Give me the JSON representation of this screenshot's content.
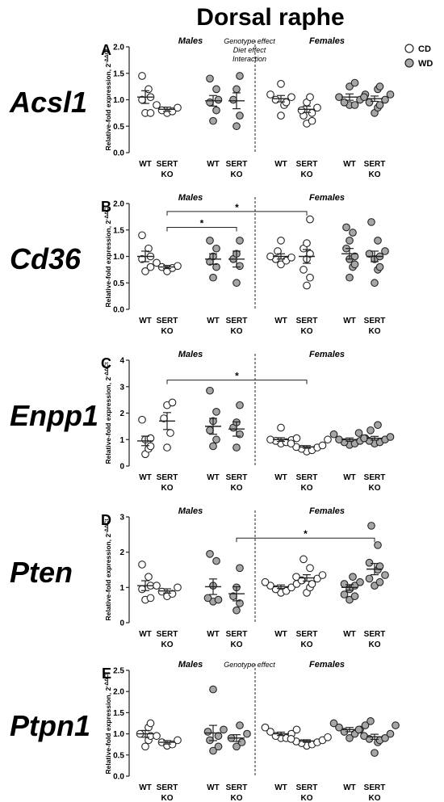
{
  "figure_title": "Dorsal raphe",
  "legend": [
    {
      "label": "CD",
      "fill": "#ffffff"
    },
    {
      "label": "WD",
      "fill": "#a6a6a6"
    }
  ],
  "y_label": "Relative-fold expression, 2",
  "y_label_sup": "-ΔΔCt",
  "category_labels": [
    {
      "line1": "WT",
      "line2": ""
    },
    {
      "line1": "SERT",
      "line2": "KO"
    },
    {
      "line1": "WT",
      "line2": ""
    },
    {
      "line1": "SERT",
      "line2": "KO"
    },
    {
      "line1": "WT",
      "line2": ""
    },
    {
      "line1": "SERT",
      "line2": "KO"
    },
    {
      "line1": "WT",
      "line2": ""
    },
    {
      "line1": "SERT",
      "line2": "KO"
    }
  ],
  "colors": {
    "cd_fill": "#ffffff",
    "wd_fill": "#a6a6a6",
    "stroke": "#222222"
  },
  "chart_data": [
    {
      "type": "scatter",
      "letter": "A",
      "gene": "Acsl1",
      "males_label": "Males",
      "females_label": "Females",
      "notes": [
        "Genotype effect",
        "Diet effect",
        "Interaction"
      ],
      "ylim": [
        0,
        2.0
      ],
      "yticks": [
        "0.0",
        "0.5",
        "1.0",
        "1.5",
        "2.0"
      ],
      "ytick_values": [
        0,
        0.5,
        1.0,
        1.5,
        2.0
      ],
      "groups": [
        {
          "values": [
            1.45,
            1.2,
            1.05,
            1.0,
            0.75,
            0.75
          ],
          "mean": 1.05,
          "sem": 0.12
        },
        {
          "values": [
            0.9,
            0.85,
            0.8,
            0.78,
            0.75
          ],
          "mean": 0.82,
          "sem": 0.04
        },
        {
          "values": [
            1.4,
            1.2,
            1.0,
            0.95,
            0.8,
            0.6
          ],
          "mean": 0.98,
          "sem": 0.1
        },
        {
          "values": [
            1.45,
            1.2,
            1.0,
            0.7,
            0.5
          ],
          "mean": 0.98,
          "sem": 0.15
        },
        {
          "values": [
            1.3,
            1.1,
            1.05,
            1.0,
            0.95,
            0.9,
            0.7
          ],
          "mean": 1.02,
          "sem": 0.06
        },
        {
          "values": [
            1.05,
            0.95,
            0.85,
            0.8,
            0.75,
            0.7,
            0.6,
            0.55
          ],
          "mean": 0.82,
          "sem": 0.06
        },
        {
          "values": [
            1.32,
            1.25,
            1.1,
            1.05,
            1.0,
            0.95,
            0.9,
            0.9
          ],
          "mean": 1.05,
          "sem": 0.06
        },
        {
          "values": [
            1.25,
            1.2,
            1.1,
            1.05,
            1.0,
            0.95,
            0.9,
            0.85,
            0.75
          ],
          "mean": 1.02,
          "sem": 0.05
        }
      ],
      "brackets": []
    },
    {
      "type": "scatter",
      "letter": "B",
      "gene": "Cd36",
      "males_label": "Males",
      "females_label": "Females",
      "notes": [],
      "ylim": [
        0,
        2.0
      ],
      "yticks": [
        "0.0",
        "0.5",
        "1.0",
        "1.5",
        "2.0"
      ],
      "ytick_values": [
        0,
        0.5,
        1.0,
        1.5,
        2.0
      ],
      "groups": [
        {
          "values": [
            1.4,
            1.15,
            1.0,
            0.95,
            0.8,
            0.72
          ],
          "mean": 1.0,
          "sem": 0.1
        },
        {
          "values": [
            0.88,
            0.82,
            0.8,
            0.78,
            0.72
          ],
          "mean": 0.8,
          "sem": 0.03
        },
        {
          "values": [
            1.3,
            1.15,
            1.0,
            0.9,
            0.8,
            0.6
          ],
          "mean": 0.95,
          "sem": 0.1
        },
        {
          "values": [
            1.3,
            1.05,
            0.95,
            0.82,
            0.5
          ],
          "mean": 0.95,
          "sem": 0.15
        },
        {
          "values": [
            1.3,
            1.1,
            1.0,
            0.98,
            0.95,
            0.92,
            0.85
          ],
          "mean": 1.0,
          "sem": 0.05
        },
        {
          "values": [
            1.7,
            1.25,
            1.15,
            1.05,
            0.95,
            0.75,
            0.6,
            0.45
          ],
          "mean": 1.0,
          "sem": 0.13
        },
        {
          "values": [
            1.55,
            1.45,
            1.3,
            1.15,
            1.0,
            0.95,
            0.85,
            0.8,
            0.6
          ],
          "mean": 1.05,
          "sem": 0.1
        },
        {
          "values": [
            1.65,
            1.3,
            1.1,
            1.05,
            1.0,
            0.95,
            0.8,
            0.75,
            0.5
          ],
          "mean": 1.0,
          "sem": 0.1
        }
      ],
      "brackets": [
        {
          "from": 1,
          "to": 3,
          "y": 1.55,
          "label": "*"
        },
        {
          "from": 1,
          "to": 5,
          "y": 1.85,
          "label": "*"
        }
      ]
    },
    {
      "type": "scatter",
      "letter": "C",
      "gene": "Enpp1",
      "males_label": "Males",
      "females_label": "Females",
      "notes": [],
      "ylim": [
        0,
        4
      ],
      "yticks": [
        "0",
        "1",
        "2",
        "3",
        "4"
      ],
      "ytick_values": [
        0,
        1,
        2,
        3,
        4
      ],
      "groups": [
        {
          "values": [
            1.75,
            1.05,
            1.0,
            0.75,
            0.65,
            0.45
          ],
          "mean": 0.95,
          "sem": 0.18
        },
        {
          "values": [
            2.4,
            2.3,
            1.8,
            1.25,
            0.7
          ],
          "mean": 1.7,
          "sem": 0.32
        },
        {
          "values": [
            2.85,
            2.05,
            1.7,
            1.35,
            1.0,
            0.75
          ],
          "mean": 1.5,
          "sem": 0.3
        },
        {
          "values": [
            2.3,
            1.65,
            1.45,
            1.2,
            0.7
          ],
          "mean": 1.4,
          "sem": 0.27
        },
        {
          "values": [
            1.45,
            1.05,
            1.0,
            0.98,
            0.95,
            0.9,
            0.85
          ],
          "mean": 1.0,
          "sem": 0.07
        },
        {
          "values": [
            1.0,
            0.85,
            0.78,
            0.72,
            0.7,
            0.65,
            0.6,
            0.55
          ],
          "mean": 0.72,
          "sem": 0.05
        },
        {
          "values": [
            1.35,
            1.2,
            1.05,
            1.0,
            0.95,
            0.9,
            0.85,
            0.8
          ],
          "mean": 1.0,
          "sem": 0.06
        },
        {
          "values": [
            1.55,
            1.25,
            1.1,
            1.05,
            1.0,
            0.95,
            0.9,
            0.85
          ],
          "mean": 1.05,
          "sem": 0.07
        }
      ],
      "brackets": [
        {
          "from": 1,
          "to": 5,
          "y": 3.25,
          "label": "*"
        }
      ]
    },
    {
      "type": "scatter",
      "letter": "D",
      "gene": "Pten",
      "males_label": "Males",
      "females_label": "Females",
      "notes": [],
      "ylim": [
        0,
        3
      ],
      "yticks": [
        "0",
        "1",
        "2",
        "3"
      ],
      "ytick_values": [
        0,
        1,
        2,
        3
      ],
      "groups": [
        {
          "values": [
            1.65,
            1.3,
            1.05,
            0.95,
            0.7,
            0.65
          ],
          "mean": 1.05,
          "sem": 0.14
        },
        {
          "values": [
            1.05,
            1.0,
            0.88,
            0.82,
            0.75
          ],
          "mean": 0.9,
          "sem": 0.06
        },
        {
          "values": [
            1.95,
            1.75,
            1.05,
            0.7,
            0.65,
            0.6
          ],
          "mean": 1.02,
          "sem": 0.22
        },
        {
          "values": [
            1.55,
            1.0,
            0.75,
            0.55,
            0.35
          ],
          "mean": 0.82,
          "sem": 0.2
        },
        {
          "values": [
            1.2,
            1.15,
            1.1,
            1.05,
            1.0,
            0.95,
            0.9,
            0.85
          ],
          "mean": 1.02,
          "sem": 0.05
        },
        {
          "values": [
            1.8,
            1.55,
            1.35,
            1.3,
            1.25,
            1.2,
            1.1,
            1.0,
            0.85
          ],
          "mean": 1.27,
          "sem": 0.09
        },
        {
          "values": [
            1.3,
            1.15,
            1.1,
            1.05,
            0.95,
            0.8,
            0.75,
            0.65
          ],
          "mean": 1.0,
          "sem": 0.08
        },
        {
          "values": [
            2.75,
            2.2,
            1.7,
            1.6,
            1.5,
            1.35,
            1.25,
            1.15,
            1.05
          ],
          "mean": 1.52,
          "sem": 0.16
        }
      ],
      "brackets": [
        {
          "from": 3,
          "to": 7,
          "y": 2.4,
          "label": "*"
        }
      ]
    },
    {
      "type": "scatter",
      "letter": "E",
      "gene": "Ptpn1",
      "males_label": "Males",
      "females_label": "Females",
      "notes": [
        "Genotype effect"
      ],
      "ylim": [
        0,
        2.5
      ],
      "yticks": [
        "0.0",
        "0.5",
        "1.0",
        "1.5",
        "2.0",
        "2.5"
      ],
      "ytick_values": [
        0,
        0.5,
        1.0,
        1.5,
        2.0,
        2.5
      ],
      "groups": [
        {
          "values": [
            1.25,
            1.15,
            1.0,
            0.95,
            0.85,
            0.7
          ],
          "mean": 1.0,
          "sem": 0.08
        },
        {
          "values": [
            0.95,
            0.85,
            0.8,
            0.75,
            0.72
          ],
          "mean": 0.8,
          "sem": 0.04
        },
        {
          "values": [
            2.05,
            1.1,
            1.05,
            0.95,
            0.85,
            0.7,
            0.6
          ],
          "mean": 1.02,
          "sem": 0.18
        },
        {
          "values": [
            1.2,
            1.0,
            0.9,
            0.8,
            0.7
          ],
          "mean": 0.9,
          "sem": 0.08
        },
        {
          "values": [
            1.15,
            1.1,
            1.05,
            1.0,
            0.95,
            0.9,
            0.9
          ],
          "mean": 1.0,
          "sem": 0.04
        },
        {
          "values": [
            0.92,
            0.88,
            0.85,
            0.82,
            0.8,
            0.78,
            0.75,
            0.72
          ],
          "mean": 0.83,
          "sem": 0.03
        },
        {
          "values": [
            1.3,
            1.25,
            1.2,
            1.15,
            1.1,
            1.05,
            1.0,
            0.9
          ],
          "mean": 1.1,
          "sem": 0.05
        },
        {
          "values": [
            1.2,
            1.1,
            1.0,
            0.95,
            0.9,
            0.88,
            0.85,
            0.8,
            0.55
          ],
          "mean": 0.93,
          "sem": 0.06
        }
      ],
      "brackets": []
    }
  ]
}
